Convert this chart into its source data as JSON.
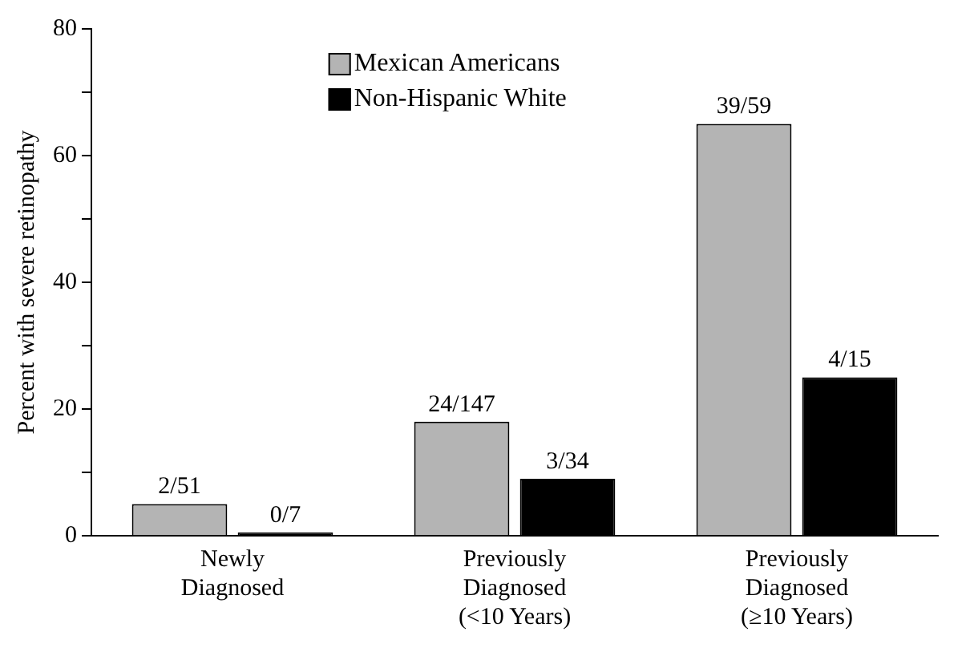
{
  "chart_data": {
    "type": "bar",
    "ylabel": "Percent with severe retinopathy",
    "categories": [
      "Newly Diagnosed",
      "Previously Diagnosed (<10 Years)",
      "Previously Diagnosed (≥10 Years)"
    ],
    "series": [
      {
        "name": "Mexican Americans",
        "color": "#b4b4b4",
        "values": [
          5,
          18,
          65
        ],
        "value_labels": [
          "2/51",
          "24/147",
          "39/59"
        ]
      },
      {
        "name": "Non-Hispanic White",
        "color": "#000000",
        "values": [
          0,
          9,
          25
        ],
        "value_labels": [
          "0/7",
          "3/34",
          "4/15"
        ]
      }
    ],
    "ylim": [
      0,
      80
    ],
    "yticks": [
      0,
      {
        "value": 10,
        "label": null
      },
      20,
      {
        "value": 30,
        "label": null
      },
      40,
      {
        "value": 50,
        "label": null
      },
      60,
      {
        "value": 70,
        "label": null
      },
      80
    ],
    "grid": false,
    "legend": "top"
  }
}
